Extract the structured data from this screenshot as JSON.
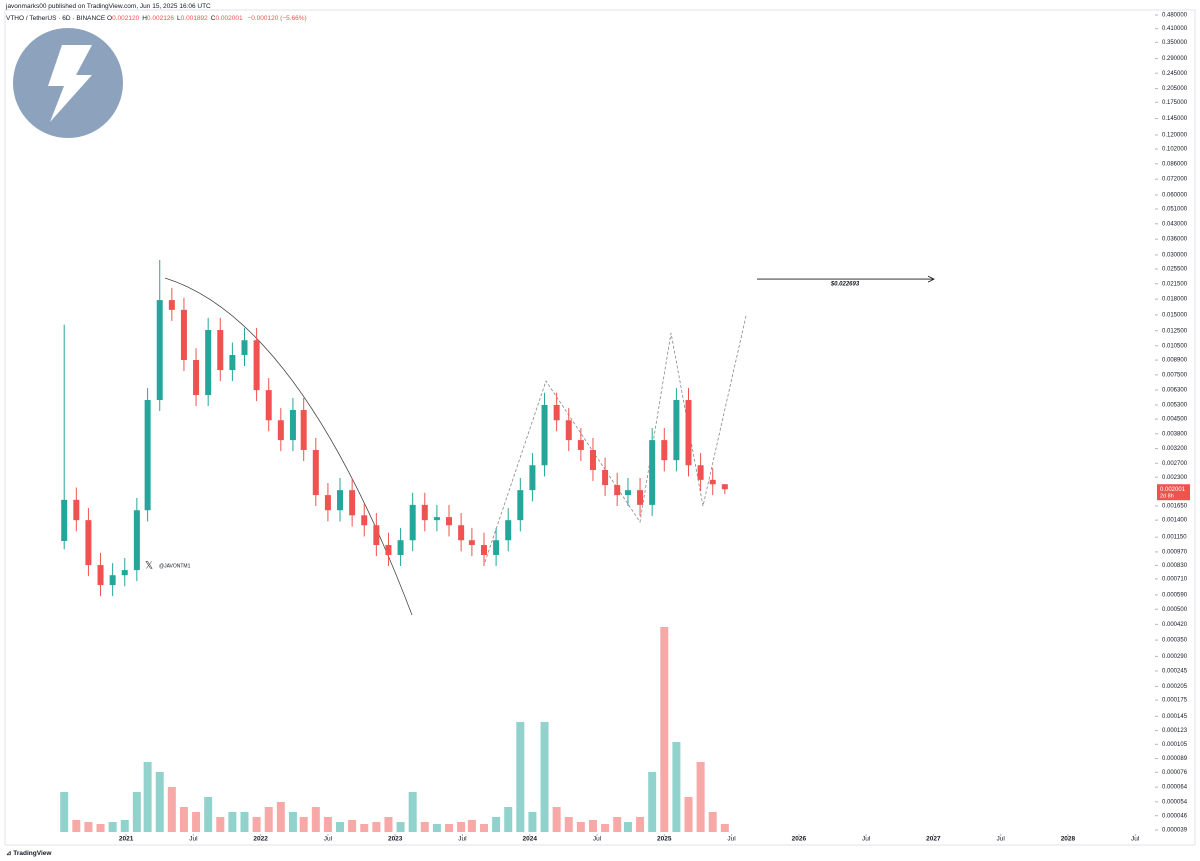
{
  "header": {
    "published": "javonmarks00 published on TradingView.com, Jun 15, 2025 16:06 UTC",
    "symbol": "VTHO / TetherUS · 6D · BINANCE",
    "ohlc": [
      [
        "O",
        "0.002120"
      ],
      [
        "H",
        "0.002126"
      ],
      [
        "L",
        "0.001892"
      ],
      [
        "C",
        "0.002001"
      ]
    ],
    "change": "−0.000120 (−5.66%)"
  },
  "chart_data": {
    "type": "candlestick",
    "log_scale": true,
    "x": [
      2020.54,
      2020.63,
      2020.72,
      2020.81,
      2020.9,
      2020.99,
      2021.08,
      2021.16,
      2021.25,
      2021.34,
      2021.43,
      2021.52,
      2021.61,
      2021.7,
      2021.79,
      2021.88,
      2021.97,
      2022.06,
      2022.15,
      2022.24,
      2022.32,
      2022.41,
      2022.5,
      2022.59,
      2022.68,
      2022.77,
      2022.86,
      2022.95,
      2023.04,
      2023.13,
      2023.22,
      2023.31,
      2023.4,
      2023.49,
      2023.57,
      2023.66,
      2023.75,
      2023.84,
      2023.93,
      2024.02,
      2024.11,
      2024.2,
      2024.29,
      2024.38,
      2024.47,
      2024.56,
      2024.65,
      2024.73,
      2024.82,
      2024.91,
      2025.0,
      2025.09,
      2025.18,
      2025.27,
      2025.36,
      2025.45
    ],
    "open": [
      0.0011,
      0.00177,
      0.0014,
      0.000833,
      0.000661,
      0.000741,
      0.000786,
      0.00157,
      0.00561,
      0.0178,
      0.0159,
      0.00891,
      0.00594,
      0.0126,
      0.00793,
      0.00944,
      0.0112,
      0.00629,
      0.00444,
      0.00353,
      0.005,
      0.00315,
      0.00187,
      0.00157,
      0.00198,
      0.00148,
      0.00132,
      0.00105,
      0.000936,
      0.00111,
      0.00167,
      0.0014,
      0.00145,
      0.00132,
      0.00111,
      0.00105,
      0.000936,
      0.00111,
      0.0014,
      0.00198,
      0.00264,
      0.0053,
      0.00444,
      0.00353,
      0.00315,
      0.0025,
      0.0021,
      0.00187,
      0.00198,
      0.00167,
      0.00353,
      0.0028,
      0.00561,
      0.00264,
      0.00223,
      0.00212
    ],
    "high": [
      0.0134,
      0.00204,
      0.00161,
      0.000958,
      0.000852,
      0.000904,
      0.00181,
      0.00645,
      0.0283,
      0.0205,
      0.0183,
      0.0102,
      0.0145,
      0.0145,
      0.0109,
      0.0129,
      0.0129,
      0.00723,
      0.00511,
      0.00575,
      0.00575,
      0.00362,
      0.00215,
      0.00228,
      0.00228,
      0.0017,
      0.00152,
      0.00121,
      0.00128,
      0.00192,
      0.00192,
      0.00167,
      0.00167,
      0.00152,
      0.00128,
      0.00121,
      0.00128,
      0.00161,
      0.00228,
      0.00304,
      0.0061,
      0.0061,
      0.00511,
      0.00406,
      0.00362,
      0.00288,
      0.00242,
      0.00228,
      0.00228,
      0.00406,
      0.00406,
      0.00645,
      0.00645,
      0.00304,
      0.00256,
      0.002126
    ],
    "low": [
      0.001,
      0.00123,
      0.000733,
      0.000582,
      0.000582,
      0.000652,
      0.000692,
      0.00138,
      0.00494,
      0.014,
      0.00784,
      0.00523,
      0.00523,
      0.00698,
      0.00698,
      0.00831,
      0.00554,
      0.00391,
      0.00311,
      0.00311,
      0.00277,
      0.00165,
      0.00138,
      0.00138,
      0.0013,
      0.00116,
      0.000924,
      0.000824,
      0.000824,
      0.000977,
      0.00123,
      0.00123,
      0.00116,
      0.000977,
      0.000924,
      0.000824,
      0.000824,
      0.000977,
      0.00123,
      0.00174,
      0.00232,
      0.00391,
      0.00311,
      0.00277,
      0.0022,
      0.00185,
      0.00165,
      0.00165,
      0.00147,
      0.00147,
      0.00246,
      0.00246,
      0.00232,
      0.00196,
      0.00187,
      0.001892
    ],
    "close": [
      0.00177,
      0.0014,
      0.000833,
      0.000661,
      0.000741,
      0.000786,
      0.00157,
      0.00561,
      0.0178,
      0.0159,
      0.00891,
      0.00594,
      0.0126,
      0.00793,
      0.00944,
      0.0112,
      0.00629,
      0.00444,
      0.00353,
      0.005,
      0.00315,
      0.00187,
      0.00157,
      0.00198,
      0.00148,
      0.00132,
      0.00105,
      0.000936,
      0.00111,
      0.00167,
      0.0014,
      0.00145,
      0.00132,
      0.00111,
      0.00105,
      0.000936,
      0.00111,
      0.0014,
      0.00198,
      0.00264,
      0.0053,
      0.00444,
      0.00353,
      0.00315,
      0.0025,
      0.0021,
      0.00187,
      0.00198,
      0.00167,
      0.00353,
      0.0028,
      0.00561,
      0.00264,
      0.00223,
      0.00212,
      0.002001
    ],
    "volume": [
      40,
      12,
      10,
      8,
      10,
      12,
      40,
      70,
      60,
      45,
      25,
      20,
      35,
      15,
      20,
      20,
      15,
      25,
      30,
      20,
      15,
      25,
      15,
      10,
      12,
      8,
      10,
      15,
      10,
      40,
      10,
      8,
      8,
      10,
      12,
      8,
      15,
      25,
      110,
      20,
      110,
      25,
      15,
      10,
      12,
      8,
      15,
      10,
      15,
      60,
      205,
      90,
      35,
      70,
      20,
      8
    ],
    "up_color": "#26a69a",
    "down_color": "#ef5350",
    "ylim": [
      3.9e-05,
      0.48
    ],
    "yticks": [
      {
        "value": 0.48,
        "label": "0.480000"
      },
      {
        "value": 0.41,
        "label": "0.410000"
      },
      {
        "value": 0.35,
        "label": "0.350000"
      },
      {
        "value": 0.29,
        "label": "0.290000"
      },
      {
        "value": 0.245,
        "label": "0.245000"
      },
      {
        "value": 0.205,
        "label": "0.205000"
      },
      {
        "value": 0.175,
        "label": "0.175000"
      },
      {
        "value": 0.145,
        "label": "0.145000"
      },
      {
        "value": 0.12,
        "label": "0.120000"
      },
      {
        "value": 0.102,
        "label": "0.102000"
      },
      {
        "value": 0.086,
        "label": "0.086000"
      },
      {
        "value": 0.072,
        "label": "0.072000"
      },
      {
        "value": 0.06,
        "label": "0.060000"
      },
      {
        "value": 0.051,
        "label": "0.051000"
      },
      {
        "value": 0.043,
        "label": "0.043000"
      },
      {
        "value": 0.036,
        "label": "0.036000"
      },
      {
        "value": 0.03,
        "label": "0.030000"
      },
      {
        "value": 0.0255,
        "label": "0.025500"
      },
      {
        "value": 0.0215,
        "label": "0.021500"
      },
      {
        "value": 0.018,
        "label": "0.018000"
      },
      {
        "value": 0.015,
        "label": "0.015000"
      },
      {
        "value": 0.0125,
        "label": "0.012500"
      },
      {
        "value": 0.0105,
        "label": "0.010500"
      },
      {
        "value": 0.0089,
        "label": "0.008900"
      },
      {
        "value": 0.0075,
        "label": "0.007500"
      },
      {
        "value": 0.0063,
        "label": "0.006300"
      },
      {
        "value": 0.0053,
        "label": "0.005300"
      },
      {
        "value": 0.0045,
        "label": "0.004500"
      },
      {
        "value": 0.0038,
        "label": "0.003800"
      },
      {
        "value": 0.0032,
        "label": "0.003200"
      },
      {
        "value": 0.0027,
        "label": "0.002700"
      },
      {
        "value": 0.0023,
        "label": "0.002300"
      },
      {
        "value": 0.00165,
        "label": "0.001650"
      },
      {
        "value": 0.0014,
        "label": "0.001400"
      },
      {
        "value": 0.00115,
        "label": "0.001150"
      },
      {
        "value": 0.00097,
        "label": "0.000970"
      },
      {
        "value": 0.00083,
        "label": "0.000830"
      },
      {
        "value": 0.00071,
        "label": "0.000710"
      },
      {
        "value": 0.00059,
        "label": "0.000590"
      },
      {
        "value": 0.0005,
        "label": "0.000500"
      },
      {
        "value": 0.00042,
        "label": "0.000420"
      },
      {
        "value": 0.00035,
        "label": "0.000350"
      },
      {
        "value": 0.00029,
        "label": "0.000290"
      },
      {
        "value": 0.000245,
        "label": "0.000245"
      },
      {
        "value": 0.000205,
        "label": "0.000205"
      },
      {
        "value": 0.000175,
        "label": "0.000175"
      },
      {
        "value": 0.000145,
        "label": "0.000145"
      },
      {
        "value": 0.000123,
        "label": "0.000123"
      },
      {
        "value": 0.000105,
        "label": "0.000105"
      },
      {
        "value": 8.9e-05,
        "label": "0.000089"
      },
      {
        "value": 7.6e-05,
        "label": "0.000076"
      },
      {
        "value": 6.4e-05,
        "label": "0.000064"
      },
      {
        "value": 5.4e-05,
        "label": "0.000054"
      },
      {
        "value": 4.6e-05,
        "label": "0.000046"
      },
      {
        "value": 3.9e-05,
        "label": "0.000039"
      }
    ],
    "xlim": [
      2020.1,
      2028.61
    ],
    "xticks": [
      2021,
      {
        "value": 2021.5,
        "label": "Jul"
      },
      2022,
      {
        "value": 2022.5,
        "label": "Jul"
      },
      2023,
      {
        "value": 2023.5,
        "label": "Jul"
      },
      2024,
      {
        "value": 2024.5,
        "label": "Jul"
      },
      2025,
      {
        "value": 2025.5,
        "label": "Jul"
      },
      2026,
      {
        "value": 2026.5,
        "label": "Jul"
      },
      2027,
      {
        "value": 2027.5,
        "label": "Jul"
      },
      2028,
      {
        "value": 2028.5,
        "label": "Jul"
      }
    ],
    "target": {
      "value": 0.022693,
      "label": "$0.022693"
    },
    "countdown": "2d 8h",
    "watermark": "@JAVONTM1"
  },
  "footer": {
    "brand": "TradingView"
  }
}
